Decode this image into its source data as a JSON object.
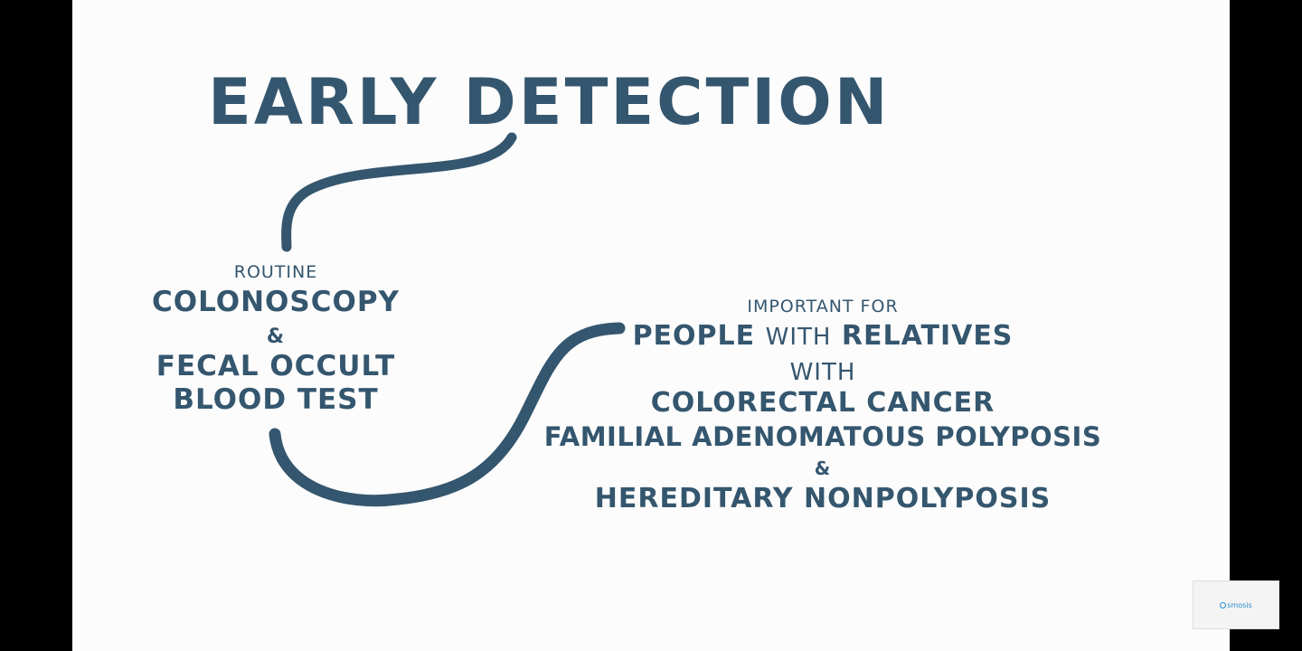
{
  "slide": {
    "title": "EARLY DETECTION",
    "left_block": {
      "routine": "ROUTINE",
      "colonoscopy": "COLONOSCOPY",
      "ampersand": "&",
      "fecal_occult": "FECAL OCCULT",
      "blood_test": "BLOOD TEST"
    },
    "right_block": {
      "important_for": "IMPORTANT FOR",
      "people": "PEOPLE",
      "with_inline": "WITH",
      "relatives": "RELATIVES",
      "with": "WITH",
      "colorectal_cancer": "COLORECTAL CANCER",
      "familial": "FAMILIAL ADENOMATOUS POLYPOSIS",
      "ampersand": "&",
      "hereditary": "HEREDITARY NONPOLYPOSIS"
    }
  },
  "watermark": {
    "logo_text": "smosis"
  },
  "colors": {
    "ink": "#34566e",
    "background": "#fcfcfc",
    "letterbox": "#000000"
  }
}
